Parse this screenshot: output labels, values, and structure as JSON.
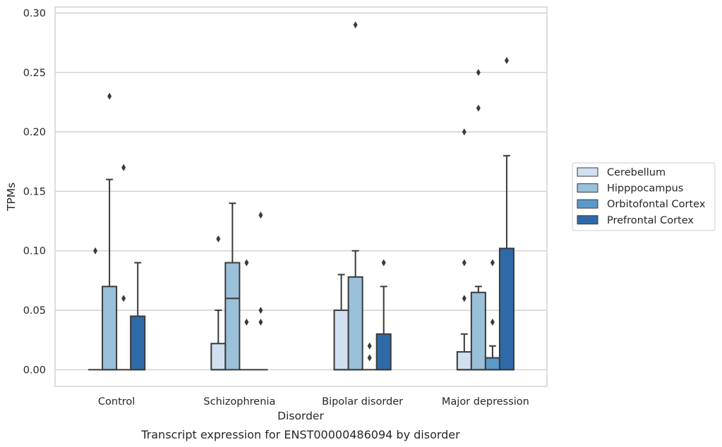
{
  "chart_data": {
    "type": "box",
    "xlabel": "Disorder",
    "ylabel": "TPMs",
    "caption": "Transcript expression for ENST00000486094 by disorder",
    "ylim": [
      -0.014,
      0.305
    ],
    "yticks": [
      "0.00",
      "0.05",
      "0.10",
      "0.15",
      "0.20",
      "0.25",
      "0.30"
    ],
    "ytick_values": [
      0,
      0.05,
      0.1,
      0.15,
      0.2,
      0.25,
      0.3
    ],
    "grid": "horizontal",
    "legend_position": "right",
    "categories": [
      "Control",
      "Schizophrenia",
      "Bipolar disorder",
      "Major depression"
    ],
    "series": [
      {
        "name": "Cerebellum",
        "color": "#d0e0f0",
        "boxes": [
          {
            "q1": 0,
            "median": 0,
            "q3": 0,
            "whislo": 0,
            "whishi": 0,
            "fliers": [
              0.1
            ]
          },
          {
            "q1": 0,
            "median": 0,
            "q3": 0.022,
            "whislo": 0,
            "whishi": 0.05,
            "fliers": [
              0.11
            ]
          },
          {
            "q1": 0,
            "median": 0,
            "q3": 0.05,
            "whislo": 0,
            "whishi": 0.08,
            "fliers": []
          },
          {
            "q1": 0,
            "median": 0,
            "q3": 0.015,
            "whislo": 0,
            "whishi": 0.03,
            "fliers": [
              0.06,
              0.09,
              0.2
            ]
          }
        ]
      },
      {
        "name": "Hipppocampus",
        "color": "#9ac0da",
        "boxes": [
          {
            "q1": 0,
            "median": 0,
            "q3": 0.07,
            "whislo": 0,
            "whishi": 0.16,
            "fliers": [
              0.23
            ]
          },
          {
            "q1": 0,
            "median": 0.06,
            "q3": 0.09,
            "whislo": 0,
            "whishi": 0.14,
            "fliers": []
          },
          {
            "q1": 0,
            "median": 0,
            "q3": 0.078,
            "whislo": 0,
            "whishi": 0.1,
            "fliers": [
              0.29
            ]
          },
          {
            "q1": 0,
            "median": 0,
            "q3": 0.065,
            "whislo": 0,
            "whishi": 0.07,
            "fliers": [
              0.22,
              0.25
            ]
          }
        ]
      },
      {
        "name": "Orbitofontal Cortex",
        "color": "#5a9ac9",
        "boxes": [
          {
            "q1": 0,
            "median": 0,
            "q3": 0,
            "whislo": 0,
            "whishi": 0,
            "fliers": [
              0.06,
              0.17
            ]
          },
          {
            "q1": 0,
            "median": 0,
            "q3": 0,
            "whislo": 0,
            "whishi": 0,
            "fliers": [
              0.04,
              0.09
            ]
          },
          {
            "q1": 0,
            "median": 0,
            "q3": 0,
            "whislo": 0,
            "whishi": 0,
            "fliers": [
              0.01,
              0.02
            ]
          },
          {
            "q1": 0,
            "median": 0,
            "q3": 0.01,
            "whislo": 0,
            "whishi": 0.02,
            "fliers": [
              0.04,
              0.09
            ]
          }
        ]
      },
      {
        "name": "Prefrontal Cortex",
        "color": "#2f6aa8",
        "boxes": [
          {
            "q1": 0,
            "median": 0,
            "q3": 0.045,
            "whislo": 0,
            "whishi": 0.09,
            "fliers": []
          },
          {
            "q1": 0,
            "median": 0,
            "q3": 0,
            "whislo": 0,
            "whishi": 0,
            "fliers": [
              0.04,
              0.05,
              0.13
            ]
          },
          {
            "q1": 0,
            "median": 0,
            "q3": 0.03,
            "whislo": 0,
            "whishi": 0.07,
            "fliers": [
              0.09
            ]
          },
          {
            "q1": 0,
            "median": 0,
            "q3": 0.102,
            "whislo": 0,
            "whishi": 0.18,
            "fliers": [
              0.26
            ]
          }
        ]
      }
    ]
  }
}
